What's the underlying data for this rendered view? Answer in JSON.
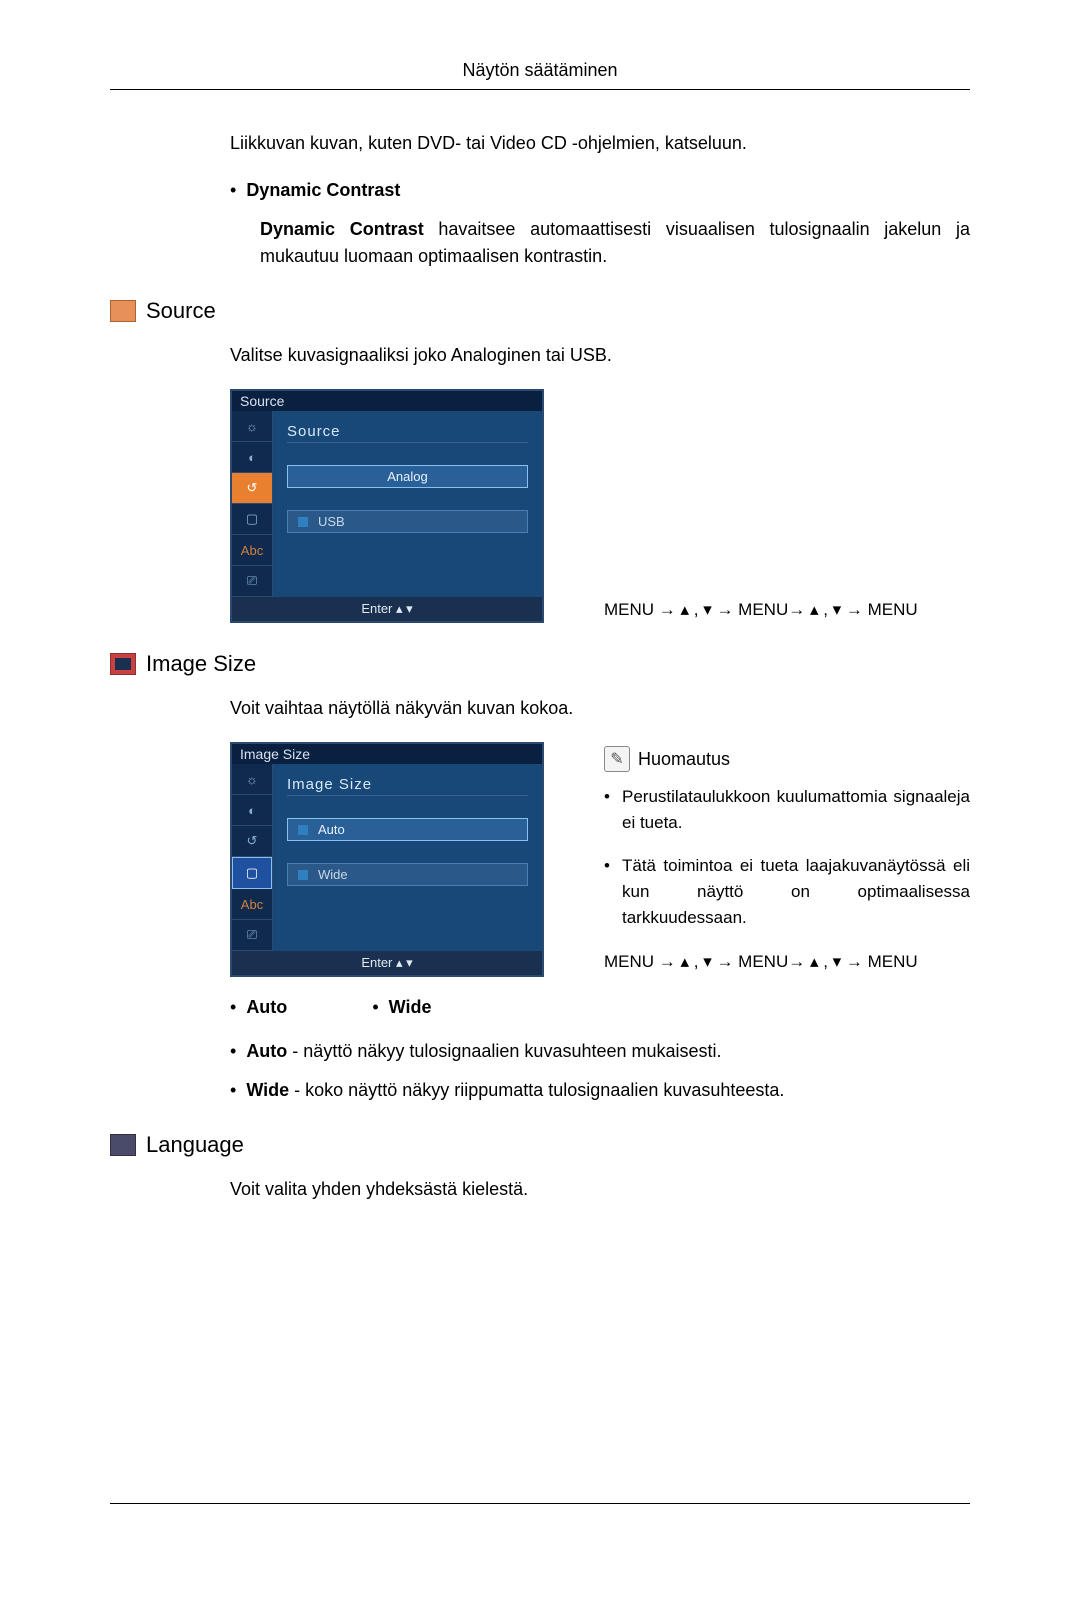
{
  "header": "Näytön säätäminen",
  "intro_text": "Liikkuvan kuvan, kuten DVD- tai Video CD -ohjelmien, katseluun.",
  "dynamic_contrast": {
    "title": "Dynamic Contrast",
    "body_prefix": "Dynamic Contrast",
    "body_rest": " havaitsee automaattisesti visuaalisen tulosignaalin jakelun ja mukautuu luomaan optimaalisen kontrastin."
  },
  "source": {
    "title": "Source",
    "desc": "Valitse kuvasignaaliksi joko Analoginen tai USB.",
    "osd": {
      "title": "Source",
      "section_label": "Source",
      "options": [
        "Analog",
        "USB"
      ],
      "footer": "Enter    ▴    ▾"
    },
    "nav": "MENU → ▴ , ▾ → MENU→ ▴ , ▾ → MENU"
  },
  "image_size": {
    "title": "Image Size",
    "desc": "Voit vaihtaa näytöllä näkyvän kuvan kokoa.",
    "osd": {
      "title": "Image Size",
      "section_label": "Image Size",
      "options": [
        "Auto",
        "Wide"
      ],
      "footer": "Enter    ▴    ▾"
    },
    "note_title": "Huomautus",
    "notes": [
      "Perustilataulukkoon kuulumattomia signaaleja ei tueta.",
      "Tätä toimintoa ei tueta laajakuvanäytössä eli kun näyttö on optimaalisessa tarkkuudessaan."
    ],
    "nav": "MENU → ▴ , ▾ → MENU→ ▴ , ▾ → MENU",
    "opt1_label": "Auto",
    "opt2_label": "Wide",
    "opt1_desc_prefix": "Auto",
    "opt1_desc_rest": " - näyttö näkyy tulosignaalien kuvasuhteen mukaisesti.",
    "opt2_desc_prefix": "Wide",
    "opt2_desc_rest": " - koko näyttö näkyy riippumatta tulosignaalien kuvasuhteesta."
  },
  "language": {
    "title": "Language",
    "desc": "Voit valita yhden yhdeksästä kielestä."
  },
  "side_icons": [
    "☼",
    "◐",
    "↺",
    "▢",
    "Abc",
    "⎚"
  ]
}
